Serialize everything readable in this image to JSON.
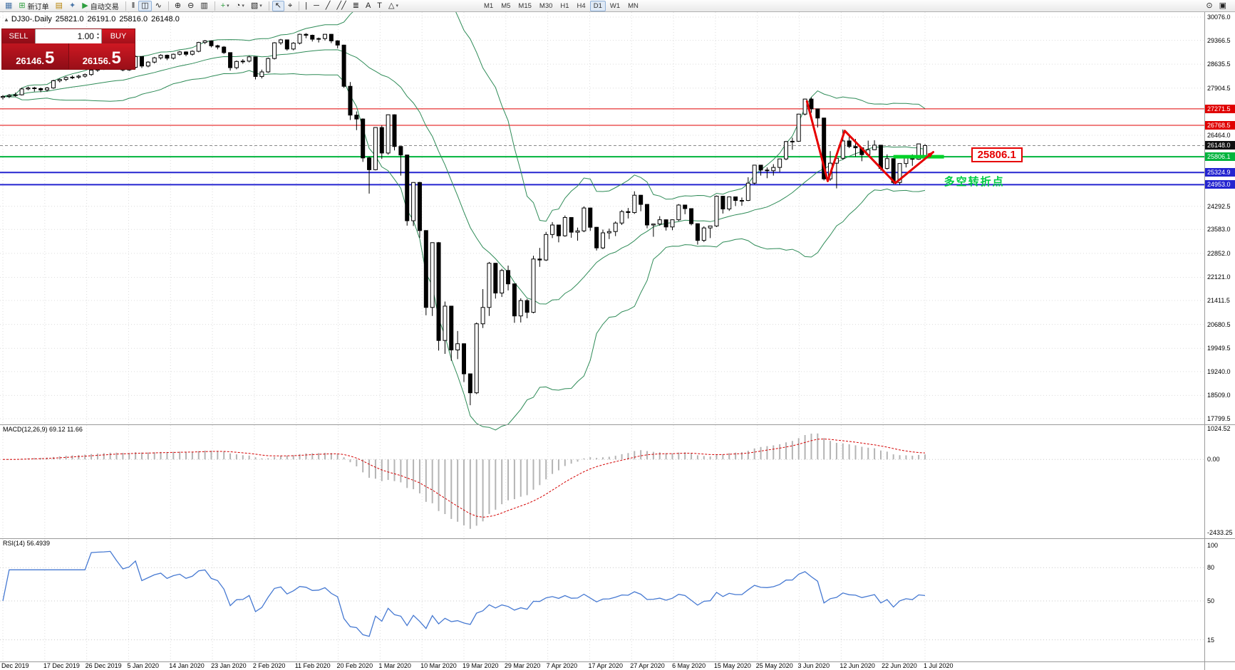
{
  "colors": {
    "band_green": "#2e8b57",
    "support_green": "#00d228",
    "level_green": "#00b43c",
    "level_blue": "#2424d0",
    "level_red": "#e00000",
    "rsi_blue": "#4679d2",
    "macd_signal": "#d40000",
    "macd_hist": "#b4b4b4",
    "annotation_red": "#e60000"
  },
  "toolbar": {
    "caret_icon": "▾",
    "active_timeframe": "D1",
    "timeframes": [
      "M1",
      "M5",
      "M15",
      "M30",
      "H1",
      "H4",
      "D1",
      "W1",
      "MN"
    ],
    "items": [
      {
        "name": "new-chart-button",
        "icon": "▦",
        "icon_name": "new-chart-icon",
        "color": "#4a76a8"
      },
      {
        "name": "new-order-button",
        "icon": "⊞",
        "icon_name": "new-order-icon",
        "color": "#2e9e3f",
        "label": "新订单"
      },
      {
        "name": "chart-profiles-button",
        "icon": "▤",
        "icon_name": "chart-profiles-icon",
        "color": "#b8860b"
      },
      {
        "name": "navigator-button",
        "icon": "✦",
        "icon_name": "navigator-icon",
        "color": "#4a76a8"
      },
      {
        "name": "auto-trading-button",
        "icon": "▶",
        "icon_name": "auto-trading-icon",
        "color": "#2e9e3f",
        "label": "自动交易"
      },
      {
        "type": "sep"
      },
      {
        "name": "bar-chart-button",
        "icon": "‖",
        "icon_name": "bar-chart-icon"
      },
      {
        "name": "candlestick-chart-button",
        "icon": "◫",
        "icon_name": "candlestick-icon",
        "active": true
      },
      {
        "name": "line-chart-button",
        "icon": "∿",
        "icon_name": "line-chart-icon"
      },
      {
        "type": "sep"
      },
      {
        "name": "zoom-in-button",
        "icon": "⊕",
        "icon_name": "zoom-in-icon"
      },
      {
        "name": "zoom-out-button",
        "icon": "⊖",
        "icon_name": "zoom-out-icon"
      },
      {
        "name": "tile-windows-button",
        "icon": "▥",
        "icon_name": "tile-windows-icon"
      },
      {
        "type": "sep"
      },
      {
        "name": "indicators-button",
        "icon": "+",
        "icon_name": "indicators-icon",
        "color": "#2e9e3f",
        "caret": true
      },
      {
        "name": "periods-button",
        "icon": "◔",
        "icon_name": "periods-icon",
        "caret": true
      },
      {
        "name": "templates-button",
        "icon": "▧",
        "icon_name": "templates-icon",
        "caret": true
      },
      {
        "type": "sep"
      },
      {
        "name": "cursor-button",
        "icon": "↖",
        "icon_name": "cursor-icon",
        "active": true
      },
      {
        "name": "crosshair-button",
        "icon": "⌖",
        "icon_name": "crosshair-icon"
      },
      {
        "type": "sep"
      },
      {
        "name": "vertical-line-button",
        "icon": "|",
        "icon_name": "vertical-line-icon"
      },
      {
        "name": "horizontal-line-button",
        "icon": "─",
        "icon_name": "horizontal-line-icon"
      },
      {
        "name": "trendline-button",
        "icon": "╱",
        "icon_name": "trendline-icon"
      },
      {
        "name": "channel-button",
        "icon": "╱╱",
        "icon_name": "channel-icon"
      },
      {
        "name": "fibonacci-button",
        "icon": "≣",
        "icon_name": "fibonacci-icon"
      },
      {
        "name": "text-button",
        "icon": "A",
        "icon_name": "text-icon"
      },
      {
        "name": "text-label-button",
        "icon": "T",
        "icon_name": "text-label-icon"
      },
      {
        "name": "shapes-button",
        "icon": "△",
        "icon_name": "shapes-icon",
        "caret": true
      },
      {
        "type": "gap"
      }
    ],
    "right_items": [
      {
        "name": "quick-search-button",
        "icon": "⊙",
        "icon_name": "magnifier-icon"
      },
      {
        "name": "chart-list-button",
        "icon": "▣",
        "icon_name": "chart-list-icon"
      }
    ]
  },
  "chart_header": {
    "marker_icon": "▲",
    "symbol": "DJ30-.Daily",
    "open": "25821.0",
    "high": "26191.0",
    "low": "25816.0",
    "close": "26148.0"
  },
  "trade_panel": {
    "sell_label": "SELL",
    "buy_label": "BUY",
    "volume": "1.00",
    "spinner_up": "▴",
    "spinner_down": "▾",
    "sell_price_main": "26146.",
    "sell_price_big": "5",
    "buy_price_main": "26156.",
    "buy_price_big": "5"
  },
  "macd_panel": {
    "name": "MACD(12,26,9)",
    "values": "69.12 11.66",
    "axis_values": [
      "1024.52",
      "0.00",
      "-2433.25"
    ]
  },
  "rsi_panel": {
    "name": "RSI(14)",
    "value": "56.4939",
    "axis_values": [
      "100",
      "80",
      "50",
      "15"
    ],
    "level_lines": [
      80,
      50,
      15
    ]
  },
  "chart_data": {
    "type": "candlestick",
    "symbol": "DJ30-",
    "timeframe": "Daily",
    "bollinger": {
      "period": 20,
      "deviations": 2
    },
    "y_axis_labels": [
      "30076.0",
      "29366.5",
      "28635.5",
      "27904.5",
      "26464.0",
      "24292.5",
      "23583.0",
      "22852.0",
      "22121.0",
      "21411.5",
      "20680.5",
      "19949.5",
      "19240.0",
      "18509.0",
      "17799.5"
    ],
    "x_axis_labels": [
      "Dec 2019",
      "17 Dec 2019",
      "26 Dec 2019",
      "5 Jan 2020",
      "14 Jan 2020",
      "23 Jan 2020",
      "2 Feb 2020",
      "11 Feb 2020",
      "20 Feb 2020",
      "1 Mar 2020",
      "10 Mar 2020",
      "19 Mar 2020",
      "29 Mar 2020",
      "7 Apr 2020",
      "17 Apr 2020",
      "27 Apr 2020",
      "6 May 2020",
      "15 May 2020",
      "25 May 2020",
      "3 Jun 2020",
      "12 Jun 2020",
      "22 Jun 2020",
      "1 Jul 2020"
    ],
    "levels": [
      {
        "price": 27271.5,
        "color": "#e00000",
        "width": 1
      },
      {
        "price": 26768.5,
        "color": "#e00000",
        "width": 1
      },
      {
        "price": 26148.0,
        "color": "#888888",
        "width": 1,
        "dash": "4,3"
      },
      {
        "price": 25806.1,
        "color": "#00b43c",
        "width": 2
      },
      {
        "price": 25324.9,
        "color": "#2424d0",
        "width": 2
      },
      {
        "price": 24953.0,
        "color": "#2424d0",
        "width": 2
      }
    ],
    "price_badges": [
      {
        "text": "27271.5",
        "bg": "#e00000"
      },
      {
        "text": "26768.5",
        "bg": "#e00000"
      },
      {
        "text": "26148.0",
        "bg": "#101010"
      },
      {
        "text": "25806.1",
        "bg": "#00b43c"
      },
      {
        "text": "25324.9",
        "bg": "#2424d0"
      },
      {
        "text": "24953.0",
        "bg": "#2424d0"
      }
    ],
    "annotations": {
      "callout_text": "25806.1",
      "turning_point_text": "多空转折点",
      "zigzag_points": [
        [
          127.3,
          27500
        ],
        [
          130.6,
          25060
        ],
        [
          133.3,
          26600
        ],
        [
          141.3,
          25000
        ],
        [
          147.3,
          25950
        ]
      ],
      "support_segment": {
        "from_bar": 141,
        "to_bar": 149,
        "price": 25806.1
      }
    },
    "candles": [
      [
        27620,
        27690,
        27555,
        27650
      ],
      [
        27650,
        27725,
        27600,
        27680
      ],
      [
        27680,
        27770,
        27640,
        27700
      ],
      [
        27700,
        27915,
        27680,
        27880
      ],
      [
        27880,
        27950,
        27840,
        27910
      ],
      [
        27910,
        27945,
        27800,
        27890
      ],
      [
        27890,
        27920,
        27780,
        27850
      ],
      [
        27850,
        27940,
        27800,
        27910
      ],
      [
        27910,
        28160,
        27885,
        28130
      ],
      [
        28130,
        28200,
        28080,
        28170
      ],
      [
        28170,
        28260,
        28120,
        28230
      ],
      [
        28230,
        28290,
        28180,
        28240
      ],
      [
        28240,
        28310,
        28190,
        28270
      ],
      [
        28270,
        28350,
        28225,
        28320
      ],
      [
        28320,
        28470,
        28280,
        28455
      ],
      [
        28455,
        28540,
        28400,
        28510
      ],
      [
        28510,
        28580,
        28460,
        28550
      ],
      [
        28550,
        28650,
        28500,
        28620
      ],
      [
        28620,
        28655,
        28490,
        28540
      ],
      [
        28540,
        28580,
        28420,
        28460
      ],
      [
        28460,
        28570,
        28430,
        28540
      ],
      [
        28540,
        28900,
        28500,
        28870
      ],
      [
        28870,
        28880,
        28520,
        28580
      ],
      [
        28580,
        28730,
        28540,
        28700
      ],
      [
        28700,
        28860,
        28660,
        28830
      ],
      [
        28830,
        28940,
        28780,
        28910
      ],
      [
        28910,
        28930,
        28760,
        28820
      ],
      [
        28820,
        28960,
        28780,
        28940
      ],
      [
        28940,
        29040,
        28900,
        29010
      ],
      [
        29010,
        29030,
        28880,
        28940
      ],
      [
        28940,
        29060,
        28900,
        29030
      ],
      [
        29030,
        29320,
        29000,
        29300
      ],
      [
        29300,
        29375,
        29250,
        29350
      ],
      [
        29350,
        29360,
        29150,
        29200
      ],
      [
        29200,
        29230,
        29090,
        29160
      ],
      [
        29160,
        29190,
        28950,
        28990
      ],
      [
        28990,
        29000,
        28440,
        28530
      ],
      [
        28530,
        28750,
        28480,
        28720
      ],
      [
        28720,
        28790,
        28650,
        28730
      ],
      [
        28730,
        28890,
        28690,
        28860
      ],
      [
        28860,
        28870,
        28170,
        28260
      ],
      [
        28260,
        28470,
        28200,
        28400
      ],
      [
        28400,
        28840,
        28370,
        28810
      ],
      [
        28810,
        29310,
        28780,
        29290
      ],
      [
        29290,
        29410,
        29230,
        29380
      ],
      [
        29380,
        29390,
        29050,
        29100
      ],
      [
        29100,
        29310,
        29060,
        29280
      ],
      [
        29280,
        29570,
        29240,
        29550
      ],
      [
        29550,
        29585,
        29430,
        29520
      ],
      [
        29520,
        29540,
        29330,
        29400
      ],
      [
        29400,
        29450,
        29300,
        29420
      ],
      [
        29420,
        29560,
        29360,
        29550
      ],
      [
        29550,
        29560,
        29280,
        29350
      ],
      [
        29350,
        29370,
        29120,
        29220
      ],
      [
        29220,
        29230,
        27910,
        27960
      ],
      [
        27960,
        28090,
        26930,
        27080
      ],
      [
        27080,
        27190,
        26620,
        26960
      ],
      [
        26960,
        26980,
        25650,
        25770
      ],
      [
        25770,
        25810,
        24680,
        25410
      ],
      [
        25410,
        26710,
        25390,
        26700
      ],
      [
        26700,
        26760,
        25740,
        25920
      ],
      [
        25920,
        27100,
        25870,
        27090
      ],
      [
        27090,
        27105,
        26000,
        26120
      ],
      [
        26120,
        26130,
        25230,
        25860
      ],
      [
        25860,
        25870,
        23700,
        23850
      ],
      [
        23850,
        25030,
        23690,
        25020
      ],
      [
        25020,
        25040,
        23330,
        23550
      ],
      [
        23550,
        23560,
        20960,
        21200
      ],
      [
        21200,
        23190,
        20940,
        23180
      ],
      [
        23180,
        23200,
        19880,
        20190
      ],
      [
        20190,
        21380,
        19780,
        21240
      ],
      [
        21240,
        21250,
        19570,
        19900
      ],
      [
        19900,
        20480,
        19620,
        20090
      ],
      [
        20090,
        20100,
        18920,
        19170
      ],
      [
        19170,
        19180,
        18210,
        18590
      ],
      [
        18590,
        20740,
        18550,
        20700
      ],
      [
        20700,
        21760,
        20570,
        21200
      ],
      [
        21200,
        22590,
        20940,
        22550
      ],
      [
        22550,
        22560,
        21470,
        21640
      ],
      [
        21640,
        22380,
        21520,
        22330
      ],
      [
        22330,
        22480,
        21720,
        21920
      ],
      [
        21920,
        21930,
        20730,
        20940
      ],
      [
        20940,
        21480,
        20740,
        21410
      ],
      [
        21410,
        21460,
        20870,
        21050
      ],
      [
        21050,
        22780,
        21020,
        22680
      ],
      [
        22680,
        23020,
        22440,
        22650
      ],
      [
        22650,
        23510,
        22620,
        23430
      ],
      [
        23430,
        23810,
        23320,
        23720
      ],
      [
        23720,
        23730,
        23190,
        23390
      ],
      [
        23390,
        24010,
        23360,
        23950
      ],
      [
        23950,
        23960,
        23330,
        23500
      ],
      [
        23500,
        23640,
        23240,
        23540
      ],
      [
        23540,
        24290,
        23500,
        24240
      ],
      [
        24240,
        24250,
        23540,
        23650
      ],
      [
        23650,
        23660,
        22940,
        23020
      ],
      [
        23020,
        23580,
        22980,
        23480
      ],
      [
        23480,
        23610,
        23290,
        23520
      ],
      [
        23520,
        23830,
        23380,
        23780
      ],
      [
        23780,
        24180,
        23720,
        24130
      ],
      [
        24130,
        24240,
        23920,
        24100
      ],
      [
        24100,
        24750,
        24060,
        24630
      ],
      [
        24630,
        24640,
        24140,
        24350
      ],
      [
        24350,
        24360,
        23620,
        23720
      ],
      [
        23720,
        23760,
        23360,
        23750
      ],
      [
        23750,
        23990,
        23700,
        23880
      ],
      [
        23880,
        23890,
        23550,
        23660
      ],
      [
        23660,
        23890,
        23560,
        23880
      ],
      [
        23880,
        24360,
        23840,
        24330
      ],
      [
        24330,
        24340,
        24050,
        24220
      ],
      [
        24220,
        24230,
        23710,
        23760
      ],
      [
        23760,
        23770,
        23120,
        23250
      ],
      [
        23250,
        23680,
        23200,
        23630
      ],
      [
        23630,
        23690,
        23320,
        23690
      ],
      [
        23690,
        24620,
        23660,
        24600
      ],
      [
        24600,
        24610,
        24070,
        24210
      ],
      [
        24210,
        24580,
        24150,
        24580
      ],
      [
        24580,
        24590,
        24300,
        24470
      ],
      [
        24470,
        24560,
        24310,
        24470
      ],
      [
        24470,
        25180,
        24450,
        25000
      ],
      [
        25000,
        25560,
        24960,
        25550
      ],
      [
        25550,
        25560,
        25230,
        25400
      ],
      [
        25400,
        25480,
        25150,
        25380
      ],
      [
        25380,
        25580,
        25230,
        25480
      ],
      [
        25480,
        25750,
        25340,
        25740
      ],
      [
        25740,
        26290,
        25700,
        26270
      ],
      [
        26270,
        26390,
        26020,
        26280
      ],
      [
        26280,
        27120,
        26260,
        27110
      ],
      [
        27110,
        27580,
        27070,
        27570
      ],
      [
        27570,
        27620,
        27150,
        27270
      ],
      [
        27270,
        27280,
        26700,
        26990
      ],
      [
        26990,
        27000,
        25080,
        25130
      ],
      [
        25130,
        25980,
        25070,
        25610
      ],
      [
        25610,
        25770,
        24840,
        25760
      ],
      [
        25760,
        26640,
        25710,
        26290
      ],
      [
        26290,
        26450,
        26070,
        26120
      ],
      [
        26120,
        26350,
        25810,
        26080
      ],
      [
        26080,
        26090,
        25670,
        25870
      ],
      [
        25870,
        26300,
        25850,
        26020
      ],
      [
        26020,
        26310,
        26010,
        26160
      ],
      [
        26160,
        26170,
        25380,
        25450
      ],
      [
        25450,
        25880,
        25410,
        25750
      ],
      [
        25750,
        25760,
        24970,
        25020
      ],
      [
        25020,
        25600,
        24950,
        25600
      ],
      [
        25600,
        25810,
        25480,
        25810
      ],
      [
        25810,
        25880,
        25530,
        25730
      ],
      [
        25730,
        26210,
        25710,
        26200
      ],
      [
        25821,
        26191,
        25816,
        26148
      ]
    ]
  }
}
